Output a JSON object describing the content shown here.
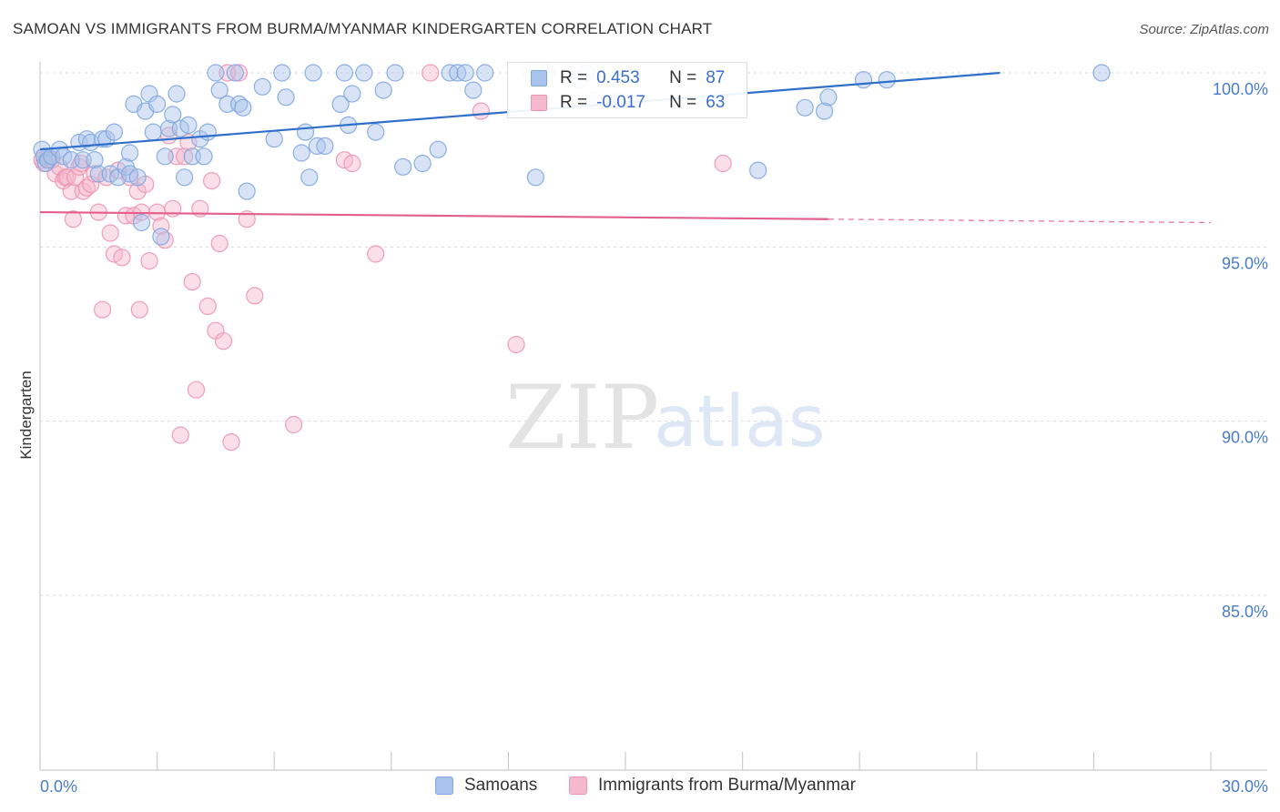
{
  "title": "SAMOAN VS IMMIGRANTS FROM BURMA/MYANMAR KINDERGARTEN CORRELATION CHART",
  "source": "Source: ZipAtlas.com",
  "watermark": {
    "zip": "ZIP",
    "atlas": "atlas"
  },
  "legend": {
    "r_label": "R =",
    "n_label": "N =",
    "samoans": {
      "r": "0.453",
      "n": "87"
    },
    "burma": {
      "r": "-0.017",
      "n": "63"
    }
  },
  "bottom_legend": {
    "samoans": "Samoans",
    "burma": "Immigrants from Burma/Myanmar"
  },
  "colors": {
    "blue_fill": "#a9c4ec",
    "blue_stroke": "#7fa6e0",
    "blue_line": "#2f6fcc",
    "pink_fill": "#f5b9cd",
    "pink_stroke": "#ec93b1",
    "pink_line": "#e2608b",
    "tick_text": "#4a7cc9"
  },
  "chart_data": {
    "type": "scatter",
    "title": "SAMOAN VS IMMIGRANTS FROM BURMA/MYANMAR KINDERGARTEN CORRELATION CHART",
    "xlabel": "",
    "ylabel": "Kindergarten",
    "xlim": [
      0,
      30
    ],
    "ylim": [
      80.3,
      100.8
    ],
    "x_tick_labels": [
      "0.0%",
      "30.0%"
    ],
    "y_ticks": [
      85,
      90,
      95,
      100
    ],
    "y_tick_labels": [
      "85.0%",
      "90.0%",
      "95.0%",
      "100.0%"
    ],
    "grid": true,
    "legend_position": "top-center",
    "series": [
      {
        "name": "Samoans",
        "r": 0.453,
        "n": 87,
        "trend": {
          "x": [
            0,
            24.6
          ],
          "y": [
            97.8,
            100.0
          ]
        },
        "points": [
          [
            0.05,
            97.8
          ],
          [
            0.1,
            97.6
          ],
          [
            0.15,
            97.4
          ],
          [
            0.2,
            97.5
          ],
          [
            0.3,
            97.6
          ],
          [
            0.5,
            97.8
          ],
          [
            0.6,
            97.6
          ],
          [
            0.8,
            97.5
          ],
          [
            1.0,
            98.0
          ],
          [
            1.1,
            97.5
          ],
          [
            1.2,
            98.1
          ],
          [
            1.3,
            98.0
          ],
          [
            1.4,
            97.5
          ],
          [
            1.5,
            97.1
          ],
          [
            1.6,
            98.1
          ],
          [
            1.7,
            98.1
          ],
          [
            1.8,
            97.1
          ],
          [
            1.9,
            98.3
          ],
          [
            2.0,
            97.0
          ],
          [
            2.2,
            97.3
          ],
          [
            2.3,
            97.1
          ],
          [
            2.3,
            97.7
          ],
          [
            2.4,
            99.1
          ],
          [
            2.5,
            97.0
          ],
          [
            2.6,
            95.7
          ],
          [
            2.7,
            98.9
          ],
          [
            2.8,
            99.4
          ],
          [
            2.9,
            98.3
          ],
          [
            3.0,
            99.1
          ],
          [
            3.1,
            95.3
          ],
          [
            3.2,
            97.6
          ],
          [
            3.3,
            98.4
          ],
          [
            3.4,
            98.8
          ],
          [
            3.5,
            99.4
          ],
          [
            3.6,
            98.4
          ],
          [
            3.7,
            97.0
          ],
          [
            3.8,
            98.5
          ],
          [
            3.9,
            97.6
          ],
          [
            4.1,
            98.1
          ],
          [
            4.2,
            97.6
          ],
          [
            4.3,
            98.3
          ],
          [
            4.5,
            100.0
          ],
          [
            4.6,
            99.5
          ],
          [
            4.8,
            99.1
          ],
          [
            5.0,
            100.0
          ],
          [
            5.1,
            99.1
          ],
          [
            5.2,
            99.0
          ],
          [
            5.3,
            96.6
          ],
          [
            5.7,
            99.6
          ],
          [
            6.0,
            98.1
          ],
          [
            6.2,
            100.0
          ],
          [
            6.3,
            99.3
          ],
          [
            6.7,
            97.7
          ],
          [
            6.8,
            98.3
          ],
          [
            6.9,
            97.0
          ],
          [
            7.0,
            100.0
          ],
          [
            7.1,
            97.9
          ],
          [
            7.3,
            97.9
          ],
          [
            7.7,
            99.1
          ],
          [
            7.8,
            100.0
          ],
          [
            7.9,
            98.5
          ],
          [
            8.0,
            99.4
          ],
          [
            8.3,
            100.0
          ],
          [
            8.6,
            98.3
          ],
          [
            8.8,
            99.5
          ],
          [
            9.1,
            100.0
          ],
          [
            9.3,
            97.3
          ],
          [
            9.8,
            97.4
          ],
          [
            10.2,
            97.8
          ],
          [
            10.5,
            100.0
          ],
          [
            10.7,
            100.0
          ],
          [
            10.9,
            100.0
          ],
          [
            11.1,
            99.5
          ],
          [
            11.4,
            100.0
          ],
          [
            12.6,
            100.0
          ],
          [
            12.7,
            97.0
          ],
          [
            13.0,
            100.0
          ],
          [
            13.8,
            99.8
          ],
          [
            14.0,
            100.0
          ],
          [
            14.2,
            99.2
          ],
          [
            14.8,
            99.2
          ],
          [
            18.4,
            97.2
          ],
          [
            19.6,
            99.0
          ],
          [
            20.1,
            98.9
          ],
          [
            20.2,
            99.3
          ],
          [
            21.1,
            99.8
          ],
          [
            21.7,
            99.8
          ],
          [
            27.2,
            100.0
          ]
        ]
      },
      {
        "name": "Immigrants from Burma/Myanmar",
        "r": -0.017,
        "n": 63,
        "trend": {
          "x": [
            0,
            20.2
          ],
          "y": [
            96.0,
            95.8
          ]
        },
        "trend_dashed": {
          "x": [
            20.2,
            30
          ],
          "y": [
            95.8,
            95.7
          ]
        },
        "points": [
          [
            0.05,
            97.5
          ],
          [
            0.1,
            97.4
          ],
          [
            0.2,
            97.6
          ],
          [
            0.3,
            97.5
          ],
          [
            0.4,
            97.1
          ],
          [
            0.5,
            97.3
          ],
          [
            0.6,
            96.9
          ],
          [
            0.65,
            97.0
          ],
          [
            0.7,
            97.0
          ],
          [
            0.8,
            96.6
          ],
          [
            0.85,
            95.8
          ],
          [
            0.9,
            97.0
          ],
          [
            1.0,
            97.3
          ],
          [
            1.05,
            97.4
          ],
          [
            1.1,
            96.6
          ],
          [
            1.2,
            96.7
          ],
          [
            1.3,
            96.8
          ],
          [
            1.4,
            97.1
          ],
          [
            1.5,
            96.0
          ],
          [
            1.6,
            93.2
          ],
          [
            1.7,
            97.0
          ],
          [
            1.8,
            95.4
          ],
          [
            1.9,
            94.8
          ],
          [
            2.0,
            97.2
          ],
          [
            2.1,
            94.7
          ],
          [
            2.2,
            95.9
          ],
          [
            2.3,
            97.0
          ],
          [
            2.4,
            95.9
          ],
          [
            2.5,
            96.6
          ],
          [
            2.55,
            93.2
          ],
          [
            2.6,
            96.0
          ],
          [
            2.7,
            96.8
          ],
          [
            2.8,
            94.6
          ],
          [
            3.0,
            96.0
          ],
          [
            3.1,
            95.6
          ],
          [
            3.2,
            95.2
          ],
          [
            3.3,
            98.2
          ],
          [
            3.4,
            96.1
          ],
          [
            3.5,
            97.6
          ],
          [
            3.6,
            89.6
          ],
          [
            3.7,
            97.6
          ],
          [
            3.8,
            98.0
          ],
          [
            3.9,
            94.0
          ],
          [
            4.0,
            90.9
          ],
          [
            4.1,
            96.1
          ],
          [
            4.3,
            93.3
          ],
          [
            4.4,
            96.9
          ],
          [
            4.5,
            92.6
          ],
          [
            4.6,
            95.1
          ],
          [
            4.7,
            92.3
          ],
          [
            4.8,
            100.0
          ],
          [
            4.9,
            89.4
          ],
          [
            5.1,
            100.0
          ],
          [
            5.3,
            95.8
          ],
          [
            5.5,
            93.6
          ],
          [
            6.5,
            89.9
          ],
          [
            7.8,
            97.5
          ],
          [
            8.0,
            97.4
          ],
          [
            8.6,
            94.8
          ],
          [
            10.0,
            100.0
          ],
          [
            11.3,
            98.9
          ],
          [
            12.2,
            92.2
          ],
          [
            17.5,
            97.4
          ]
        ]
      }
    ]
  }
}
